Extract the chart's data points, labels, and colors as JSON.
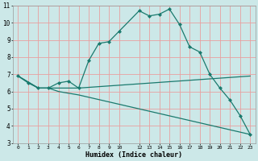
{
  "xlabel": "Humidex (Indice chaleur)",
  "background_color": "#cce8e8",
  "grid_color": "#e8a0a0",
  "line_color": "#1a7a6e",
  "line1_x": [
    0,
    1,
    2,
    3,
    4,
    5,
    6,
    7,
    8,
    9,
    10,
    12,
    13,
    14,
    15,
    16,
    17,
    18,
    19,
    20,
    21,
    22,
    23
  ],
  "line1_y": [
    6.9,
    6.5,
    6.2,
    6.2,
    6.5,
    6.6,
    6.2,
    7.8,
    8.8,
    8.9,
    9.5,
    10.7,
    10.4,
    10.5,
    10.8,
    9.9,
    8.6,
    8.3,
    7.0,
    6.2,
    5.5,
    4.6,
    3.5
  ],
  "line2_x": [
    0,
    2,
    3,
    4,
    5,
    6,
    23
  ],
  "line2_y": [
    6.9,
    6.2,
    6.2,
    6.2,
    6.2,
    6.2,
    6.9
  ],
  "line3_x": [
    0,
    2,
    3,
    4,
    5,
    6,
    23
  ],
  "line3_y": [
    6.9,
    6.2,
    6.2,
    6.0,
    5.9,
    5.8,
    3.5
  ],
  "ylim": [
    3,
    11
  ],
  "xlim": [
    -0.5,
    23.5
  ],
  "yticks": [
    3,
    4,
    5,
    6,
    7,
    8,
    9,
    10,
    11
  ],
  "xticks": [
    0,
    1,
    2,
    3,
    4,
    5,
    6,
    7,
    8,
    9,
    10,
    12,
    13,
    14,
    15,
    16,
    17,
    18,
    19,
    20,
    21,
    22,
    23
  ]
}
